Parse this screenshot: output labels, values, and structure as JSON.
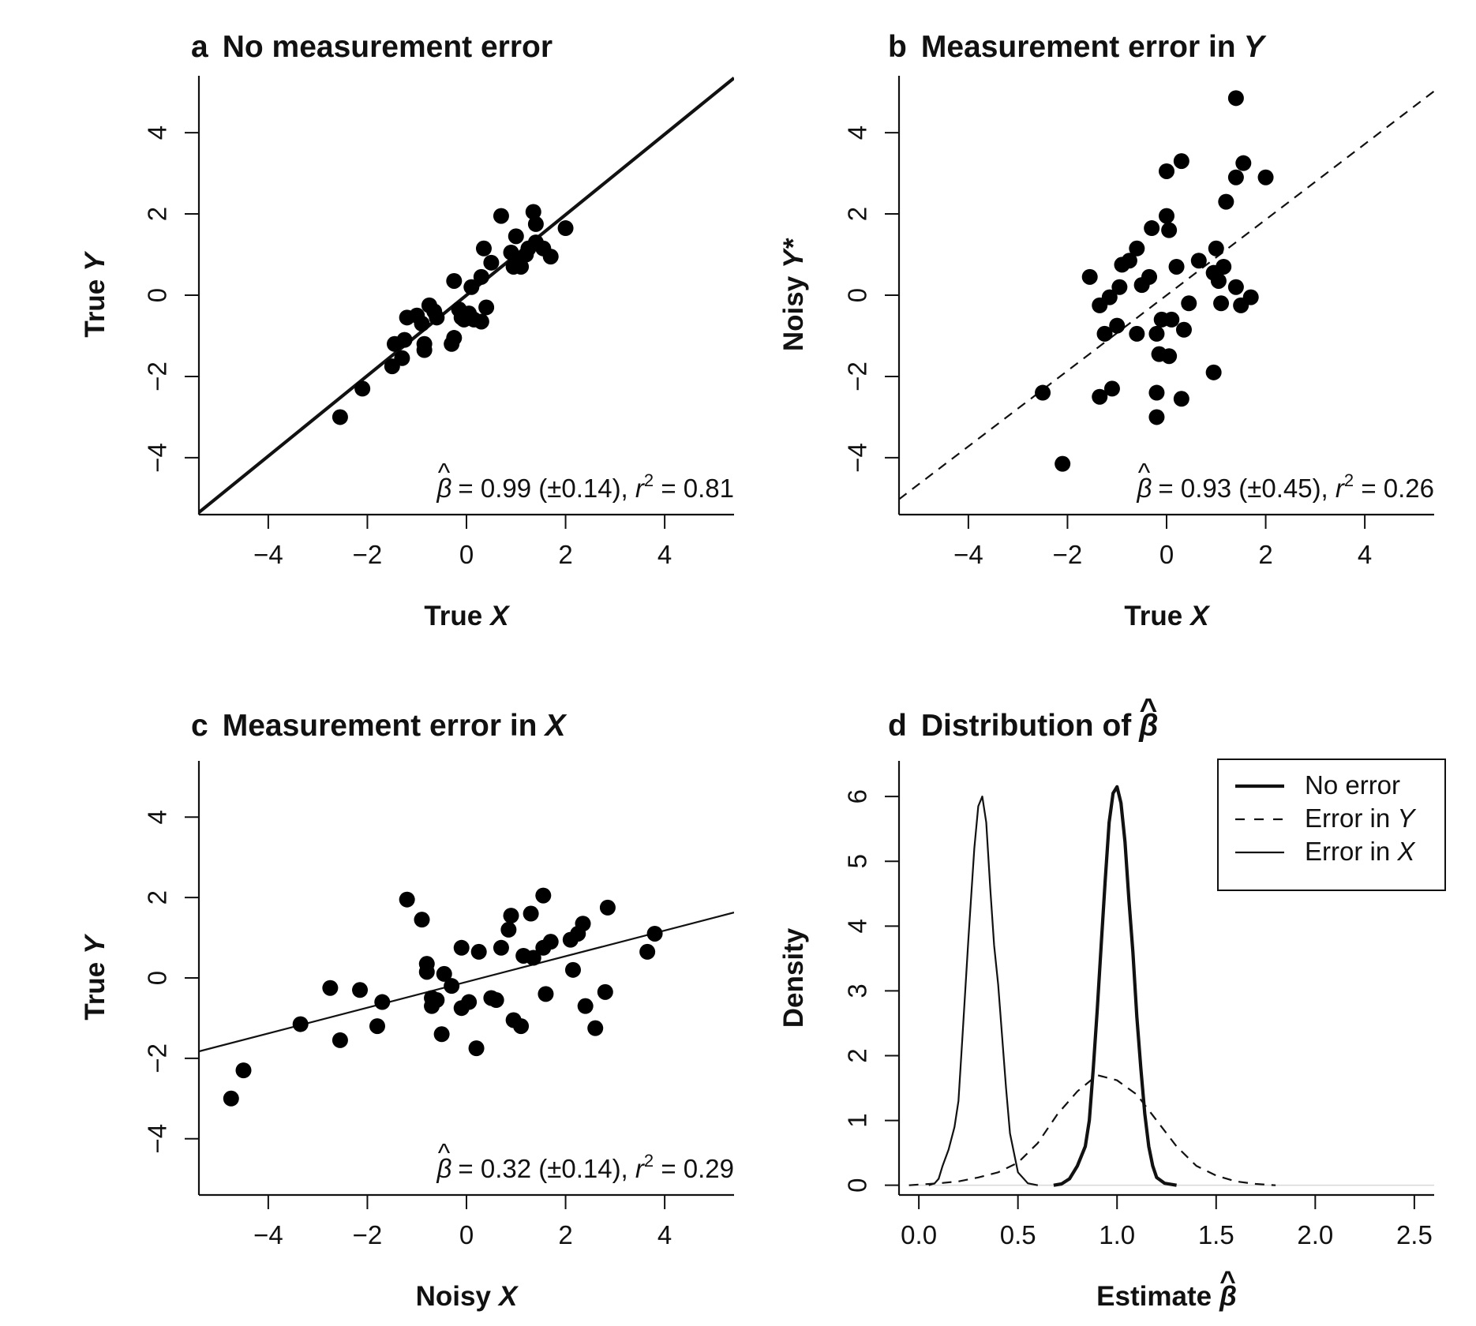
{
  "chart_data": [
    {
      "panel": "a",
      "type": "scatter",
      "title": "No measurement error",
      "title_italic": "",
      "xlabel": "True",
      "xlabel_italic": "X",
      "ylabel": "True",
      "ylabel_italic": "Y",
      "xlim": [
        -5.4,
        5.4
      ],
      "ylim": [
        -5.4,
        5.4
      ],
      "xticks": [
        "-4",
        "-2",
        "0",
        "2",
        "4"
      ],
      "yticks": [
        "-4",
        "-2",
        "0",
        "2",
        "4"
      ],
      "fit_line": {
        "intercept": 0.0,
        "slope": 0.99,
        "style": "solid-thick"
      },
      "annotation": {
        "beta": "= 0.99 (±0.14), ",
        "r": "r",
        "sup": "2",
        "r2": " = 0.81"
      },
      "points": [
        [
          -2.55,
          -3.0
        ],
        [
          -2.1,
          -2.3
        ],
        [
          -1.5,
          -1.75
        ],
        [
          -1.3,
          -1.55
        ],
        [
          -1.25,
          -1.1
        ],
        [
          -1.2,
          -0.55
        ],
        [
          -1.0,
          -0.5
        ],
        [
          -0.9,
          -0.7
        ],
        [
          -0.85,
          -1.2
        ],
        [
          -0.85,
          -1.35
        ],
        [
          -0.75,
          -0.25
        ],
        [
          -0.65,
          -0.4
        ],
        [
          -0.6,
          -0.55
        ],
        [
          -0.3,
          -1.2
        ],
        [
          -0.25,
          -1.05
        ],
        [
          -0.25,
          0.35
        ],
        [
          -0.15,
          -0.35
        ],
        [
          -0.1,
          -0.55
        ],
        [
          -0.05,
          -0.6
        ],
        [
          0.05,
          -0.45
        ],
        [
          0.1,
          0.2
        ],
        [
          0.15,
          -0.6
        ],
        [
          0.3,
          -0.65
        ],
        [
          0.3,
          0.45
        ],
        [
          0.35,
          1.15
        ],
        [
          0.5,
          0.8
        ],
        [
          0.7,
          1.95
        ],
        [
          0.9,
          1.05
        ],
        [
          0.95,
          0.7
        ],
        [
          1.0,
          1.45
        ],
        [
          1.05,
          0.85
        ],
        [
          1.1,
          0.7
        ],
        [
          1.2,
          1.0
        ],
        [
          1.35,
          2.05
        ],
        [
          1.4,
          1.3
        ],
        [
          1.4,
          1.75
        ],
        [
          1.55,
          1.15
        ],
        [
          1.7,
          0.95
        ],
        [
          2.0,
          1.65
        ],
        [
          0.4,
          -0.3
        ],
        [
          -1.45,
          -1.2
        ],
        [
          1.25,
          1.15
        ]
      ]
    },
    {
      "panel": "b",
      "type": "scatter",
      "title": "Measurement error in",
      "title_italic": "Y",
      "xlabel": "True",
      "xlabel_italic": "X",
      "ylabel": "Noisy",
      "ylabel_italic": "Y*",
      "xlim": [
        -5.4,
        5.4
      ],
      "ylim": [
        -5.4,
        5.4
      ],
      "xticks": [
        "-4",
        "-2",
        "0",
        "2",
        "4"
      ],
      "yticks": [
        "-4",
        "-2",
        "0",
        "2",
        "4"
      ],
      "fit_line": {
        "intercept": 0.0,
        "slope": 0.93,
        "style": "dashed"
      },
      "annotation": {
        "beta": "= 0.93 (±0.45), ",
        "r": "r",
        "sup": "2",
        "r2": " = 0.26"
      },
      "points": [
        [
          -2.5,
          -2.4
        ],
        [
          -2.1,
          -4.15
        ],
        [
          -1.55,
          0.45
        ],
        [
          -1.35,
          -2.5
        ],
        [
          -1.35,
          -0.25
        ],
        [
          -1.25,
          -0.95
        ],
        [
          -1.1,
          -2.3
        ],
        [
          -1.0,
          -0.75
        ],
        [
          -0.95,
          0.2
        ],
        [
          -0.9,
          0.75
        ],
        [
          -0.75,
          0.85
        ],
        [
          -0.6,
          1.15
        ],
        [
          -0.6,
          -0.95
        ],
        [
          -0.35,
          0.45
        ],
        [
          -0.3,
          1.65
        ],
        [
          -0.2,
          -0.95
        ],
        [
          -0.2,
          -2.4
        ],
        [
          -0.2,
          -3.0
        ],
        [
          -0.15,
          -1.45
        ],
        [
          -0.1,
          -0.6
        ],
        [
          0.0,
          3.05
        ],
        [
          0.0,
          1.95
        ],
        [
          0.05,
          1.6
        ],
        [
          0.05,
          -1.5
        ],
        [
          0.1,
          -0.6
        ],
        [
          0.2,
          0.7
        ],
        [
          0.3,
          3.3
        ],
        [
          0.3,
          -2.55
        ],
        [
          0.35,
          -0.85
        ],
        [
          0.45,
          -0.2
        ],
        [
          0.65,
          0.85
        ],
        [
          0.95,
          0.55
        ],
        [
          0.95,
          -1.9
        ],
        [
          1.0,
          1.15
        ],
        [
          1.05,
          0.35
        ],
        [
          1.1,
          -0.2
        ],
        [
          1.15,
          0.7
        ],
        [
          1.2,
          2.3
        ],
        [
          1.4,
          2.9
        ],
        [
          1.4,
          0.2
        ],
        [
          1.4,
          4.85
        ],
        [
          1.5,
          -0.25
        ],
        [
          1.55,
          3.25
        ],
        [
          1.7,
          -0.05
        ],
        [
          2.0,
          2.9
        ],
        [
          -0.5,
          0.25
        ],
        [
          -1.15,
          -0.05
        ]
      ]
    },
    {
      "panel": "c",
      "type": "scatter",
      "title": "Measurement error in",
      "title_italic": "X",
      "xlabel": "Noisy",
      "xlabel_italic": "X",
      "ylabel": "True",
      "ylabel_italic": "Y",
      "xlim": [
        -5.4,
        5.4
      ],
      "ylim": [
        -5.4,
        5.4
      ],
      "xticks": [
        "-4",
        "-2",
        "0",
        "2",
        "4"
      ],
      "yticks": [
        "-4",
        "-2",
        "0",
        "2",
        "4"
      ],
      "fit_line": {
        "intercept": -0.1,
        "slope": 0.32,
        "style": "solid-thin"
      },
      "annotation": {
        "beta": "= 0.32 (±0.14), ",
        "r": "r",
        "sup": "2",
        "r2": " = 0.29"
      },
      "points": [
        [
          -4.75,
          -3.0
        ],
        [
          -4.5,
          -2.3
        ],
        [
          -3.35,
          -1.15
        ],
        [
          -2.75,
          -0.25
        ],
        [
          -2.55,
          -1.55
        ],
        [
          -2.15,
          -0.3
        ],
        [
          -1.8,
          -1.2
        ],
        [
          -1.7,
          -0.6
        ],
        [
          -1.2,
          1.95
        ],
        [
          -0.9,
          1.45
        ],
        [
          -0.8,
          0.15
        ],
        [
          -0.8,
          0.35
        ],
        [
          -0.7,
          -0.5
        ],
        [
          -0.7,
          -0.7
        ],
        [
          -0.6,
          -0.55
        ],
        [
          -0.5,
          -1.4
        ],
        [
          -0.45,
          0.1
        ],
        [
          -0.3,
          -0.2
        ],
        [
          -0.1,
          0.75
        ],
        [
          -0.1,
          -0.75
        ],
        [
          0.05,
          -0.6
        ],
        [
          0.2,
          -1.75
        ],
        [
          0.25,
          0.65
        ],
        [
          0.5,
          -0.5
        ],
        [
          0.6,
          -0.55
        ],
        [
          0.7,
          0.75
        ],
        [
          0.85,
          1.2
        ],
        [
          0.9,
          1.55
        ],
        [
          0.95,
          -1.05
        ],
        [
          1.1,
          -1.2
        ],
        [
          1.15,
          0.55
        ],
        [
          1.3,
          1.6
        ],
        [
          1.35,
          0.5
        ],
        [
          1.55,
          0.75
        ],
        [
          1.55,
          2.05
        ],
        [
          1.6,
          -0.4
        ],
        [
          1.7,
          0.9
        ],
        [
          2.1,
          0.95
        ],
        [
          2.15,
          0.2
        ],
        [
          2.25,
          1.1
        ],
        [
          2.35,
          1.35
        ],
        [
          2.4,
          -0.7
        ],
        [
          2.6,
          -1.25
        ],
        [
          2.8,
          -0.35
        ],
        [
          2.85,
          1.75
        ],
        [
          3.65,
          0.65
        ],
        [
          3.8,
          1.1
        ]
      ]
    },
    {
      "panel": "d",
      "type": "line",
      "title": "Distribution of",
      "title_italic": "β",
      "xlabel": "Estimate",
      "xlabel_italic": "β",
      "ylabel": "Density",
      "ylabel_italic": "",
      "xlim": [
        -0.1,
        2.6
      ],
      "ylim": [
        -0.15,
        6.55
      ],
      "xticks": [
        "0.0",
        "0.5",
        "1.0",
        "1.5",
        "2.0",
        "2.5"
      ],
      "yticks": [
        "0",
        "1",
        "2",
        "3",
        "4",
        "5",
        "6"
      ],
      "legend": {
        "position": "top-right"
      },
      "series": [
        {
          "name": "No error",
          "style": "solid-thick",
          "x": [
            0.68,
            0.72,
            0.76,
            0.8,
            0.84,
            0.86,
            0.88,
            0.9,
            0.92,
            0.94,
            0.96,
            0.98,
            1.0,
            1.02,
            1.04,
            1.06,
            1.08,
            1.1,
            1.12,
            1.14,
            1.16,
            1.18,
            1.2,
            1.24,
            1.3
          ],
          "y": [
            0.0,
            0.02,
            0.1,
            0.3,
            0.6,
            1.0,
            1.8,
            2.7,
            3.7,
            4.7,
            5.6,
            6.05,
            6.15,
            5.9,
            5.3,
            4.4,
            3.6,
            2.6,
            1.8,
            1.1,
            0.6,
            0.3,
            0.12,
            0.03,
            0.0
          ]
        },
        {
          "name": "Error in Y",
          "style": "dashed",
          "x": [
            -0.05,
            0.1,
            0.2,
            0.3,
            0.4,
            0.5,
            0.6,
            0.7,
            0.8,
            0.9,
            1.0,
            1.1,
            1.2,
            1.3,
            1.4,
            1.5,
            1.6,
            1.7,
            1.8
          ],
          "y": [
            0.0,
            0.03,
            0.06,
            0.12,
            0.2,
            0.35,
            0.65,
            1.1,
            1.45,
            1.7,
            1.62,
            1.4,
            1.0,
            0.6,
            0.3,
            0.15,
            0.06,
            0.02,
            0.0
          ]
        },
        {
          "name": "Error in X",
          "style": "solid-thin",
          "x": [
            0.05,
            0.08,
            0.1,
            0.12,
            0.15,
            0.18,
            0.2,
            0.22,
            0.25,
            0.28,
            0.3,
            0.32,
            0.34,
            0.36,
            0.38,
            0.4,
            0.42,
            0.44,
            0.46,
            0.5,
            0.55,
            0.6
          ],
          "y": [
            0.0,
            0.03,
            0.1,
            0.3,
            0.55,
            0.9,
            1.3,
            2.3,
            3.8,
            5.2,
            5.85,
            6.0,
            5.6,
            4.6,
            3.7,
            3.1,
            2.3,
            1.5,
            0.8,
            0.2,
            0.03,
            0.0
          ]
        }
      ]
    }
  ]
}
